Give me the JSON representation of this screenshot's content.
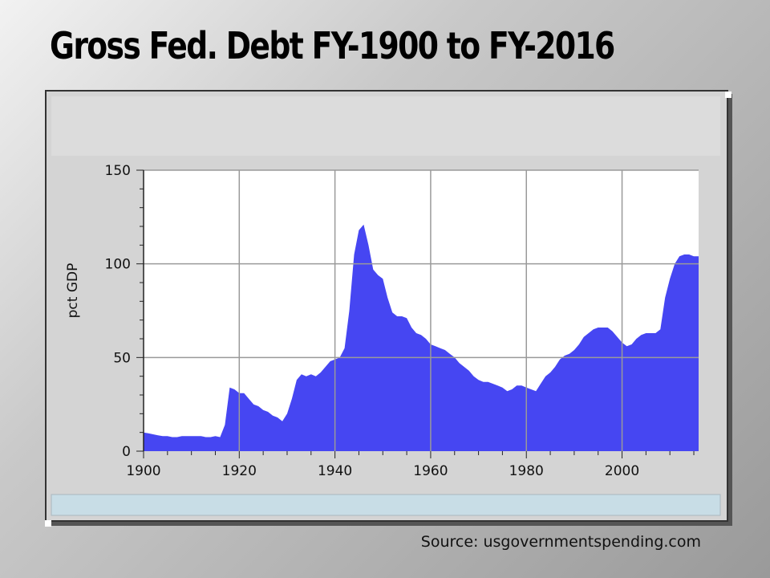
{
  "slide": {
    "title": "Gross Fed. Debt FY-1900 to FY-2016",
    "source": "Source: usgovernmentspending.com"
  },
  "colors": {
    "area_fill": "#4646f2",
    "plot_background": "#ffffff",
    "grid": "#9a9a9a",
    "frame_background": "#d4d4d4",
    "header_band": "#dcdcdc",
    "footer_band": "#c8dde6"
  },
  "chart_data": {
    "type": "area",
    "title": "",
    "xlabel": "",
    "ylabel": "pct GDP",
    "xlim": [
      1900,
      2016
    ],
    "ylim": [
      0,
      150
    ],
    "xticks": [
      1900,
      1920,
      1940,
      1960,
      1980,
      2000
    ],
    "yticks": [
      0,
      50,
      100,
      150
    ],
    "grid": true,
    "legend": "none",
    "series": [
      {
        "x": [
          1900,
          1901,
          1902,
          1903,
          1904,
          1905,
          1906,
          1907,
          1908,
          1909,
          1910,
          1911,
          1912,
          1913,
          1914,
          1915,
          1916,
          1917,
          1918,
          1919,
          1920,
          1921,
          1922,
          1923,
          1924,
          1925,
          1926,
          1927,
          1928,
          1929,
          1930,
          1931,
          1932,
          1933,
          1934,
          1935,
          1936,
          1937,
          1938,
          1939,
          1940,
          1941,
          1942,
          1943,
          1944,
          1945,
          1946,
          1947,
          1948,
          1949,
          1950,
          1951,
          1952,
          1953,
          1954,
          1955,
          1956,
          1957,
          1958,
          1959,
          1960,
          1961,
          1962,
          1963,
          1964,
          1965,
          1966,
          1967,
          1968,
          1969,
          1970,
          1971,
          1972,
          1973,
          1974,
          1975,
          1976,
          1977,
          1978,
          1979,
          1980,
          1981,
          1982,
          1983,
          1984,
          1985,
          1986,
          1987,
          1988,
          1989,
          1990,
          1991,
          1992,
          1993,
          1994,
          1995,
          1996,
          1997,
          1998,
          1999,
          2000,
          2001,
          2002,
          2003,
          2004,
          2005,
          2006,
          2007,
          2008,
          2009,
          2010,
          2011,
          2012,
          2013,
          2014,
          2015,
          2016
        ],
        "values": [
          10,
          9.5,
          9,
          8.5,
          8,
          8,
          7.5,
          7.5,
          8,
          8,
          8,
          8,
          8,
          7.5,
          7.5,
          8,
          7.5,
          14,
          34,
          33,
          31,
          31,
          28,
          25,
          24,
          22,
          21,
          19,
          18,
          16,
          20,
          28,
          38,
          41,
          40,
          41,
          40,
          42,
          45,
          48,
          49,
          50,
          55,
          75,
          105,
          118,
          121,
          110,
          97,
          94,
          92,
          82,
          74,
          72,
          72,
          71,
          66,
          63,
          62,
          60,
          57,
          56,
          55,
          54,
          52,
          50,
          47,
          45,
          43,
          40,
          38,
          37,
          37,
          36,
          35,
          34,
          32,
          33,
          35,
          35,
          34,
          33,
          32,
          36,
          40,
          42,
          45,
          49,
          51,
          52,
          54,
          57,
          61,
          63,
          65,
          66,
          66,
          66,
          64,
          61,
          58,
          56,
          57,
          60,
          62,
          63,
          63,
          63,
          65,
          82,
          92,
          100,
          104,
          105,
          105,
          104,
          104
        ]
      }
    ]
  }
}
